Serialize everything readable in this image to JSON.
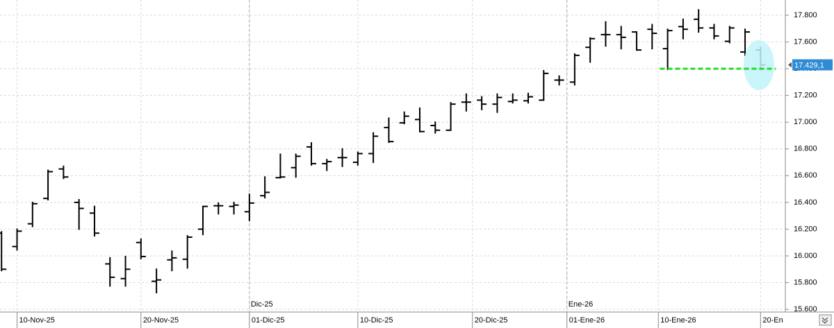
{
  "chart_data": {
    "type": "ohlc",
    "color": "#000000",
    "grid": true,
    "xlim": [
      -0.1,
      50.6
    ],
    "ylim": [
      15585,
      17914
    ],
    "yticks": [
      {
        "value": 15600,
        "label": "15.600"
      },
      {
        "value": 15800,
        "label": "15.800"
      },
      {
        "value": 16000,
        "label": "16.000"
      },
      {
        "value": 16200,
        "label": "16.200"
      },
      {
        "value": 16400,
        "label": "16.400"
      },
      {
        "value": 16600,
        "label": "16.600"
      },
      {
        "value": 16800,
        "label": "16.800"
      },
      {
        "value": 17000,
        "label": "17.000"
      },
      {
        "value": 17200,
        "label": "17.200"
      },
      {
        "value": 17400,
        "label": "17.400"
      },
      {
        "value": 17600,
        "label": "17.600"
      },
      {
        "value": 17800,
        "label": "17.800"
      }
    ],
    "xticks": [
      {
        "value": 1,
        "label": "10-Nov-25"
      },
      {
        "value": 9,
        "label": "20-Nov-25"
      },
      {
        "value": 16,
        "label": "01-Dic-25"
      },
      {
        "value": 23,
        "label": "10-Dic-25"
      },
      {
        "value": 30.4,
        "label": "20-Dic-25"
      },
      {
        "value": 36.5,
        "label": "01-Ene-26"
      },
      {
        "value": 42.4,
        "label": "10-Ene-26"
      },
      {
        "value": 49,
        "label": "20-En"
      }
    ],
    "month_markers": [
      {
        "value": 16,
        "label": "Dic-25"
      },
      {
        "value": 36.5,
        "label": "Ene-26"
      }
    ],
    "open": [
      16170,
      16070,
      16240,
      16430,
      16650,
      16400,
      16320,
      15940,
      15830,
      16100,
      15810,
      15970,
      15975,
      16200,
      16375,
      16370,
      16330,
      16450,
      16585,
      16660,
      16815,
      16690,
      16735,
      16700,
      16765,
      16960,
      16995,
      17020,
      16975,
      16940,
      17150,
      17165,
      17135,
      17155,
      17160,
      17165,
      17315,
      17300,
      17560,
      17655,
      17655,
      17675,
      17695,
      17550,
      17715,
      17770,
      17705,
      17605,
      17525,
      17540
    ],
    "high": [
      16180,
      16200,
      16400,
      16640,
      16670,
      16420,
      16370,
      15985,
      15995,
      16125,
      15900,
      16035,
      16150,
      16370,
      16395,
      16400,
      16460,
      16590,
      16760,
      16760,
      16845,
      16720,
      16800,
      16775,
      16920,
      17030,
      17075,
      17105,
      17000,
      17145,
      17210,
      17190,
      17210,
      17210,
      17215,
      17385,
      17345,
      17510,
      17630,
      17750,
      17715,
      17675,
      17730,
      17695,
      17770,
      17840,
      17730,
      17715,
      17695,
      17560
    ],
    "low": [
      15890,
      16045,
      16220,
      16420,
      16580,
      16200,
      16150,
      15775,
      15775,
      15980,
      15725,
      15890,
      15910,
      16160,
      16315,
      16315,
      16265,
      16435,
      16585,
      16590,
      16680,
      16640,
      16670,
      16680,
      16700,
      16850,
      16990,
      16930,
      16920,
      16940,
      17085,
      17095,
      17075,
      17145,
      17145,
      17165,
      17280,
      17280,
      17450,
      17570,
      17550,
      17540,
      17550,
      17395,
      17625,
      17675,
      17625,
      17595,
      17500,
      17395
    ],
    "close": [
      15900,
      16185,
      16390,
      16630,
      16590,
      16355,
      16170,
      15840,
      15900,
      15995,
      15820,
      15985,
      16140,
      16370,
      16375,
      16380,
      16395,
      16475,
      16590,
      16745,
      16690,
      16705,
      16735,
      16765,
      16895,
      16855,
      17045,
      16930,
      16940,
      17135,
      17150,
      17135,
      17185,
      17165,
      17190,
      17365,
      17315,
      17500,
      17625,
      17655,
      17635,
      17540,
      17665,
      17685,
      17695,
      17705,
      17645,
      17705,
      17675,
      17429.1
    ],
    "last_price": {
      "value": 17429.1,
      "label": "17.429,1"
    },
    "support_line": {
      "value": 17400,
      "color": "#22dd22"
    }
  }
}
